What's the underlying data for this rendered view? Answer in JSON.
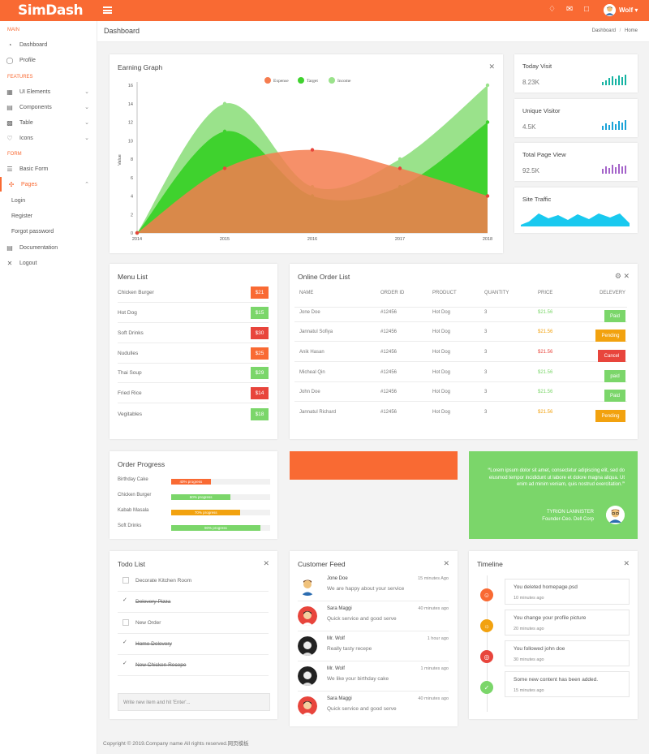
{
  "brand": {
    "name": "SimDash",
    "accent": "#f96a33"
  },
  "topbar": {
    "menu_icon": "hamburger-icon",
    "icons": [
      "bell-icon",
      "mail-icon",
      "chat-icon"
    ],
    "user": "Wolf"
  },
  "sidebar": {
    "sections": [
      "MAIN",
      "FEATURES",
      "FORM"
    ],
    "items": [
      {
        "label": "Dashboard",
        "icon": "dashboard-icon"
      },
      {
        "label": "Profile",
        "icon": "user-icon"
      },
      {
        "label": "UI Elements",
        "icon": "ui-icon"
      },
      {
        "label": "Components",
        "icon": "components-icon"
      },
      {
        "label": "Table",
        "icon": "table-icon"
      },
      {
        "label": "Icons",
        "icon": "heart-icon"
      },
      {
        "label": "Basic Form",
        "icon": "form-icon"
      },
      {
        "label": "Pages",
        "icon": "pages-icon"
      },
      {
        "label": "Documentation",
        "icon": "document-icon"
      },
      {
        "label": "Logout",
        "icon": "logout-icon"
      }
    ],
    "pages_sub": [
      "Login",
      "Register",
      "Forgot password"
    ]
  },
  "page": {
    "title": "Dashboard",
    "crumb_home": "Dashboard",
    "crumb_sep": "/",
    "crumb_current": "Home"
  },
  "earning": {
    "title": "Earning Graph"
  },
  "chart_data": {
    "type": "area",
    "title": "Earning Graph",
    "xlabel": "",
    "ylabel": "Value",
    "x": [
      2014,
      2015,
      2016,
      2017,
      2018
    ],
    "ylim": [
      0,
      16
    ],
    "yticks": [
      0,
      2,
      4,
      6,
      8,
      10,
      12,
      14,
      16
    ],
    "legend_position": "top-center",
    "series": [
      {
        "name": "Expense",
        "color": "#f57c4f",
        "values": [
          0,
          7,
          9,
          7,
          4
        ]
      },
      {
        "name": "Target",
        "color": "#3fd22e",
        "values": [
          0,
          11,
          4,
          5,
          12
        ]
      },
      {
        "name": "Income",
        "color": "#9ae28b",
        "values": [
          0,
          14,
          5,
          8,
          16
        ]
      }
    ]
  },
  "stats": [
    {
      "title": "Today Visit",
      "value": "8.23K",
      "color": "#15b3a2"
    },
    {
      "title": "Unique Visitor",
      "value": "4.5K",
      "color": "#1aa3d8"
    },
    {
      "title": "Total Page View",
      "value": "92.5K",
      "color": "#a463c9"
    },
    {
      "title": "Site Traffic",
      "value": "",
      "color": "#19c9ef"
    }
  ],
  "menu": {
    "title": "Menu List",
    "items": [
      {
        "name": "Chicken Burger",
        "price": "$21",
        "color": "#f96a33"
      },
      {
        "name": "Hot Dog",
        "price": "$15",
        "color": "#7bd66a"
      },
      {
        "name": "Soft Drinks",
        "price": "$30",
        "color": "#e8453c"
      },
      {
        "name": "Nudulles",
        "price": "$25",
        "color": "#f96a33"
      },
      {
        "name": "Thai Soup",
        "price": "$29",
        "color": "#7bd66a"
      },
      {
        "name": "Fried Rice",
        "price": "$14",
        "color": "#e8453c"
      },
      {
        "name": "Vegitables",
        "price": "$18",
        "color": "#7bd66a"
      }
    ]
  },
  "orders": {
    "title": "Online Order List",
    "headers": [
      "NAME",
      "ORDER ID",
      "PRODUCT",
      "QUANTITY",
      "PRICE",
      "DELEVERY"
    ],
    "rows": [
      {
        "name": "Jone Doe",
        "id": "#12456",
        "product": "Hot Dog",
        "qty": "3",
        "price": "$21.56",
        "price_color": "#7bd66a",
        "status": "Paid",
        "status_color": "#7bd66a"
      },
      {
        "name": "Jannatul Sofiya",
        "id": "#12456",
        "product": "Hot Dog",
        "qty": "3",
        "price": "$21.56",
        "price_color": "#f2a20f",
        "status": "Pending",
        "status_color": "#f2a20f"
      },
      {
        "name": "Anik Hasan",
        "id": "#12456",
        "product": "Hot Dog",
        "qty": "3",
        "price": "$21.56",
        "price_color": "#e8453c",
        "status": "Cancel",
        "status_color": "#e8453c"
      },
      {
        "name": "Micheal Qin",
        "id": "#12456",
        "product": "Hot Dog",
        "qty": "3",
        "price": "$21.56",
        "price_color": "#7bd66a",
        "status": "paid",
        "status_color": "#7bd66a"
      },
      {
        "name": "John Doe",
        "id": "#12456",
        "product": "Hot Dog",
        "qty": "3",
        "price": "$21.56",
        "price_color": "#7bd66a",
        "status": "Paid",
        "status_color": "#7bd66a"
      },
      {
        "name": "Jannatul Richard",
        "id": "#12456",
        "product": "Hot Dog",
        "qty": "3",
        "price": "$21.56",
        "price_color": "#f2a20f",
        "status": "Pending",
        "status_color": "#f2a20f"
      }
    ]
  },
  "progress": {
    "title": "Order Progress",
    "items": [
      {
        "name": "Birthday Cake",
        "label": "40% progress",
        "value": 0.4,
        "color": "#f96a33"
      },
      {
        "name": "Chicken Burger",
        "label": "60% progress",
        "value": 0.6,
        "color": "#7bd66a"
      },
      {
        "name": "Kabab Masala",
        "label": "70% progress",
        "value": 0.7,
        "color": "#f2a20f"
      },
      {
        "name": "Soft Drinks",
        "label": "90% progress",
        "value": 0.9,
        "color": "#7bd66a"
      }
    ]
  },
  "testimonial": {
    "text": "Lorem ipsum dolor sit amet, consectetur adipiscing elit, sed do eiusmod tempor incididunt ut labore et dolore magna aliqua. Ut enim ad minim veniam, quis nostrud exercitation.",
    "name": "TYRION LANNISTER",
    "role": "Founder-Ceo. Dell Corp"
  },
  "todo": {
    "title": "Todo List",
    "items": [
      {
        "text": "Decorate Kitchen Room",
        "done": false
      },
      {
        "text": "Delevery Pizza",
        "done": true
      },
      {
        "text": "New Order",
        "done": false
      },
      {
        "text": "Home Delevery",
        "done": true
      },
      {
        "text": "New Chicken Recepe",
        "done": true
      }
    ],
    "placeholder": "Write new item and hit 'Enter'..."
  },
  "feed": {
    "title": "Customer Feed",
    "items": [
      {
        "name": "Jone Doe",
        "text": "We are happy about your service",
        "time": "15 minutes Ago",
        "avatar_bg": "#ffffff"
      },
      {
        "name": "Sara Maggi",
        "text": "Quick service and good serve",
        "time": "40 minutes ago",
        "avatar_bg": "#e8453c"
      },
      {
        "name": "Mr. Wolf",
        "text": "Really tasty recepe",
        "time": "1 hour ago",
        "avatar_bg": "#222222"
      },
      {
        "name": "Mr. Wolf",
        "text": "We like your birthday cake",
        "time": "1 minutes ago",
        "avatar_bg": "#222222"
      },
      {
        "name": "Sara Maggi",
        "text": "Quick service and good serve",
        "time": "40 minutes ago",
        "avatar_bg": "#e8453c"
      }
    ]
  },
  "timeline": {
    "title": "Timeline",
    "items": [
      {
        "text": "You deleted homepage.psd",
        "time": "10 minutes ago",
        "color": "#f96a33",
        "icon": "smile-icon"
      },
      {
        "text": "You change your profile picture",
        "time": "20 minutes ago",
        "color": "#f2a20f",
        "icon": "sun-icon"
      },
      {
        "text": "You followed john doe",
        "time": "30 minutes ago",
        "color": "#e8453c",
        "icon": "target-icon"
      },
      {
        "text": "Some new content has been added.",
        "time": "15 minutes ago",
        "color": "#7bd66a",
        "icon": "check-icon"
      }
    ]
  },
  "footer": {
    "text": "Copyright © 2019.Company name All rights reserved.网页模板"
  }
}
